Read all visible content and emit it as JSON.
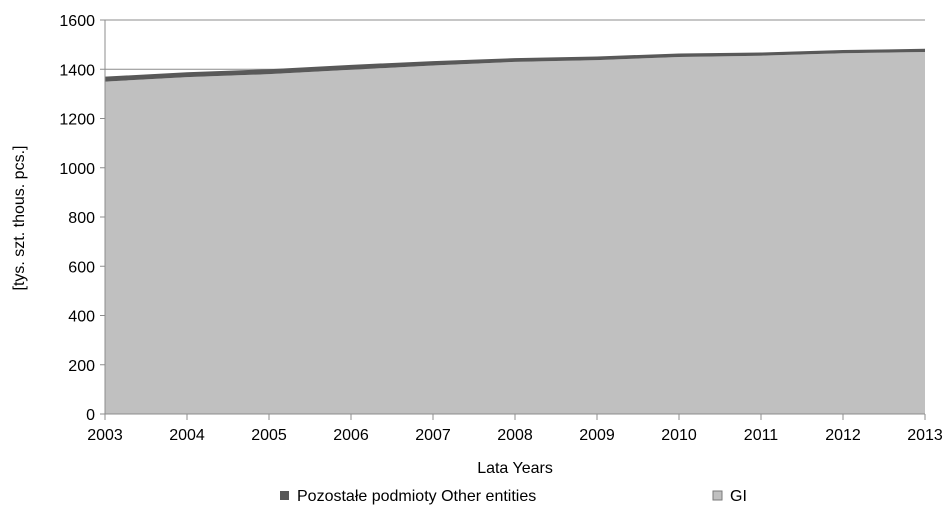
{
  "chart_data": {
    "type": "area",
    "stacked": true,
    "x": [
      2003,
      2004,
      2005,
      2006,
      2007,
      2008,
      2009,
      2010,
      2011,
      2012,
      2013
    ],
    "series": [
      {
        "name": "GI",
        "values": [
          1350,
          1368,
          1380,
          1398,
          1415,
          1430,
          1437,
          1450,
          1455,
          1465,
          1470
        ],
        "color": "#c0c0c0"
      },
      {
        "name": "Pozostałe podmioty  Other entities",
        "values": [
          20,
          20,
          20,
          20,
          18,
          15,
          15,
          14,
          13,
          13,
          13
        ],
        "color": "#595959"
      }
    ],
    "xlabel": "Lata  Years",
    "ylabel": "[tys. szt.  thous. pcs.]",
    "ylim": [
      0,
      1600
    ],
    "yticks": [
      0,
      200,
      400,
      600,
      800,
      1000,
      1200,
      1400,
      1600
    ],
    "grid": "horizontal",
    "legend_position": "bottom",
    "legend_order": [
      "Pozostałe podmioty  Other entities",
      "GI"
    ]
  }
}
